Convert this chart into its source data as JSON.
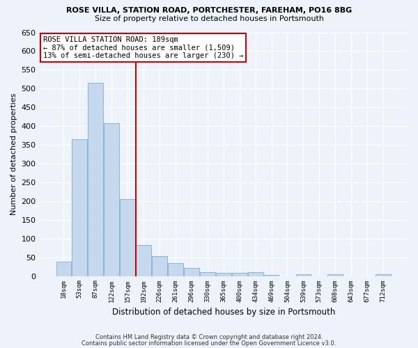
{
  "title1": "ROSE VILLA, STATION ROAD, PORTCHESTER, FAREHAM, PO16 8BG",
  "title2": "Size of property relative to detached houses in Portsmouth",
  "xlabel": "Distribution of detached houses by size in Portsmouth",
  "ylabel": "Number of detached properties",
  "bar_color": "#c5d8ed",
  "bar_edgecolor": "#7bafd4",
  "vline_color": "#cc0000",
  "annotation_line1": "ROSE VILLA STATION ROAD: 189sqm",
  "annotation_line2": "← 87% of detached houses are smaller (1,509)",
  "annotation_line3": "13% of semi-detached houses are larger (230) →",
  "annotation_box_edgecolor": "#cc0000",
  "categories": [
    "18sqm",
    "53sqm",
    "87sqm",
    "122sqm",
    "157sqm",
    "192sqm",
    "226sqm",
    "261sqm",
    "296sqm",
    "330sqm",
    "365sqm",
    "400sqm",
    "434sqm",
    "469sqm",
    "504sqm",
    "539sqm",
    "573sqm",
    "608sqm",
    "643sqm",
    "677sqm",
    "712sqm"
  ],
  "values": [
    38,
    365,
    515,
    408,
    205,
    83,
    53,
    35,
    22,
    11,
    8,
    8,
    10,
    2,
    0,
    5,
    0,
    5,
    0,
    0,
    5
  ],
  "vline_bar_index": 5,
  "ylim": [
    0,
    650
  ],
  "yticks": [
    0,
    50,
    100,
    150,
    200,
    250,
    300,
    350,
    400,
    450,
    500,
    550,
    600,
    650
  ],
  "footer1": "Contains HM Land Registry data © Crown copyright and database right 2024.",
  "footer2": "Contains public sector information licensed under the Open Government Licence v3.0.",
  "bg_color": "#eef2fb",
  "plot_bg_color": "#eef2fb"
}
